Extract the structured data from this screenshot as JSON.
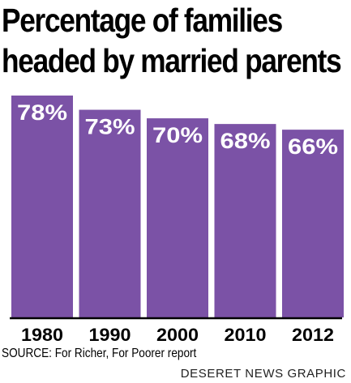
{
  "title_lines": [
    "Percentage of families",
    "headed by married parents"
  ],
  "source": "SOURCE: For Richer, For Poorer report",
  "credit": "DESERET NEWS GRAPHIC",
  "colors": {
    "bar": "#7B52A6",
    "bar_label": "#ffffff",
    "axis": "#000000"
  },
  "chart_data": {
    "type": "bar",
    "title": "Percentage of families headed by married parents",
    "categories": [
      "1980",
      "1990",
      "2000",
      "2010",
      "2012"
    ],
    "values": [
      78,
      73,
      70,
      68,
      66
    ],
    "value_labels": [
      "78%",
      "73%",
      "70%",
      "68%",
      "66%"
    ],
    "ylim": [
      0,
      78
    ],
    "grid": false,
    "legend": "none"
  }
}
